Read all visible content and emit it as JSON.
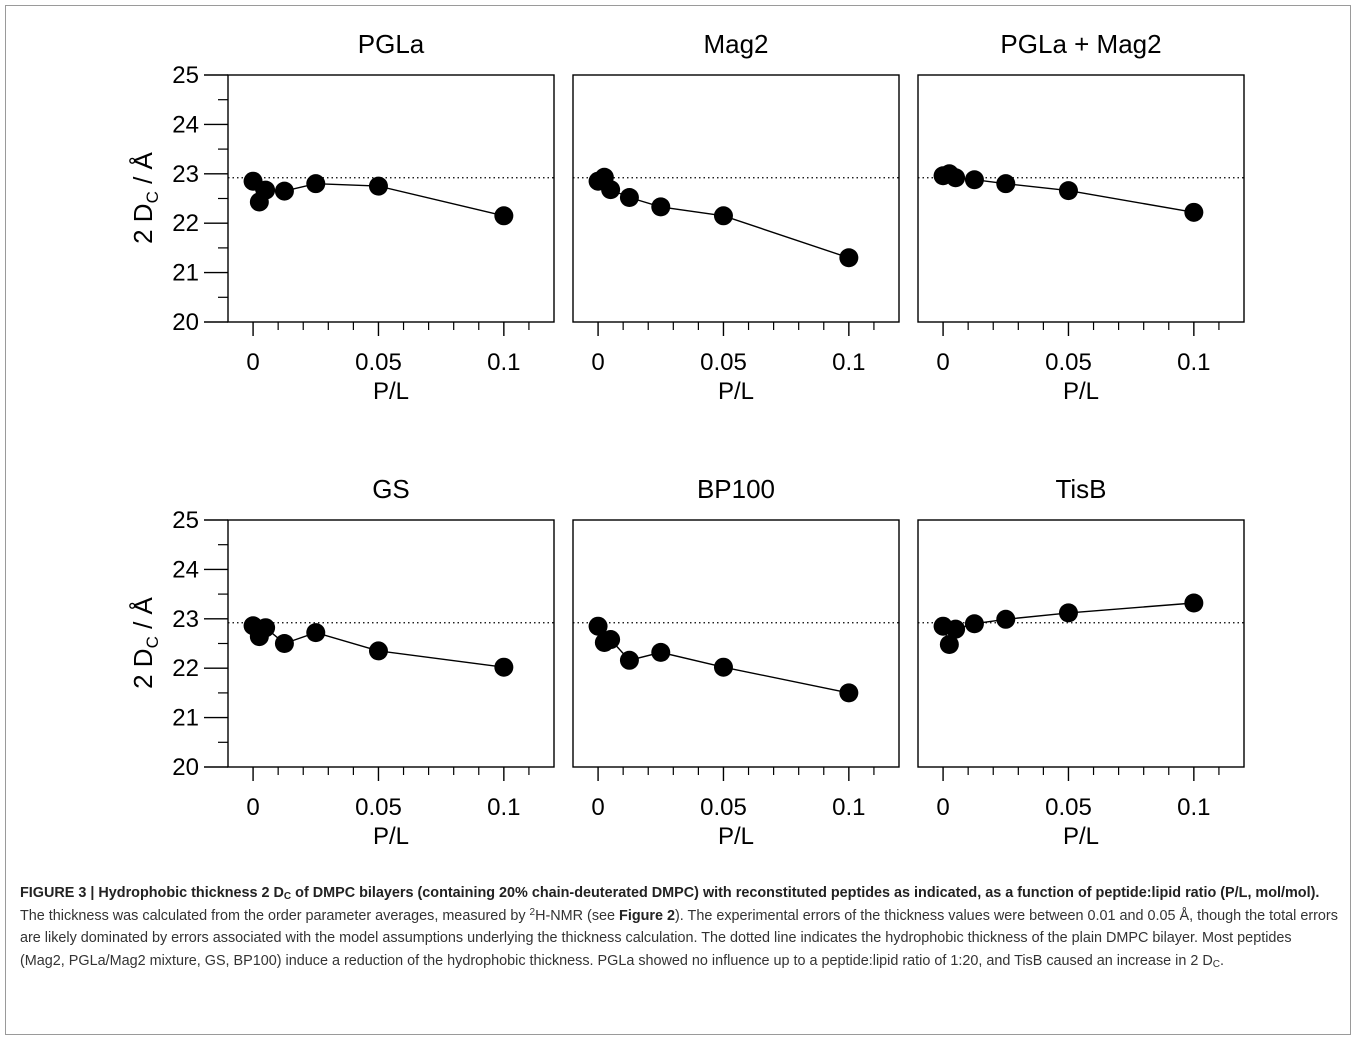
{
  "chart_data": [
    {
      "type": "line",
      "title": "PGLa",
      "xlabel": "P/L",
      "ylabel_main": "2 D",
      "ylabel_sub": "C",
      "ylabel_unit": " / Å",
      "xlim": [
        -0.01,
        0.12
      ],
      "ylim": [
        20,
        25
      ],
      "xticks": [
        "0",
        "0.05",
        "0.1"
      ],
      "yticks": [
        "20",
        "21",
        "22",
        "23",
        "24",
        "25"
      ],
      "reference_line": 22.92,
      "series": [
        {
          "x": [
            0,
            0.0025,
            0.005,
            0.0125,
            0.025,
            0.05,
            0.1
          ],
          "y": [
            22.85,
            22.43,
            22.67,
            22.65,
            22.8,
            22.75,
            22.15
          ]
        }
      ]
    },
    {
      "type": "line",
      "title": "Mag2",
      "xlabel": "P/L",
      "xlim": [
        -0.01,
        0.12
      ],
      "ylim": [
        20,
        25
      ],
      "xticks": [
        "0",
        "0.05",
        "0.1"
      ],
      "reference_line": 22.92,
      "series": [
        {
          "x": [
            0,
            0.0025,
            0.005,
            0.0125,
            0.025,
            0.05,
            0.1
          ],
          "y": [
            22.85,
            22.93,
            22.68,
            22.52,
            22.33,
            22.15,
            21.3
          ]
        }
      ]
    },
    {
      "type": "line",
      "title": "PGLa + Mag2",
      "xlabel": "P/L",
      "xlim": [
        -0.01,
        0.12
      ],
      "ylim": [
        20,
        25
      ],
      "xticks": [
        "0",
        "0.05",
        "0.1"
      ],
      "reference_line": 22.92,
      "series": [
        {
          "x": [
            0,
            0.0025,
            0.005,
            0.0125,
            0.025,
            0.05,
            0.1
          ],
          "y": [
            22.96,
            23.0,
            22.92,
            22.88,
            22.8,
            22.66,
            22.22
          ]
        }
      ]
    },
    {
      "type": "line",
      "title": "GS",
      "xlabel": "P/L",
      "ylabel_main": "2 D",
      "ylabel_sub": "C",
      "ylabel_unit": " / Å",
      "xlim": [
        -0.01,
        0.12
      ],
      "ylim": [
        20,
        25
      ],
      "xticks": [
        "0",
        "0.05",
        "0.1"
      ],
      "yticks": [
        "20",
        "21",
        "22",
        "23",
        "24",
        "25"
      ],
      "reference_line": 22.92,
      "series": [
        {
          "x": [
            0,
            0.0025,
            0.005,
            0.0125,
            0.025,
            0.05,
            0.1
          ],
          "y": [
            22.86,
            22.64,
            22.82,
            22.5,
            22.72,
            22.35,
            22.02
          ]
        }
      ]
    },
    {
      "type": "line",
      "title": "BP100",
      "xlabel": "P/L",
      "xlim": [
        -0.01,
        0.12
      ],
      "ylim": [
        20,
        25
      ],
      "xticks": [
        "0",
        "0.05",
        "0.1"
      ],
      "reference_line": 22.92,
      "series": [
        {
          "x": [
            0,
            0.0025,
            0.005,
            0.0125,
            0.025,
            0.05,
            0.1
          ],
          "y": [
            22.85,
            22.52,
            22.58,
            22.16,
            22.32,
            22.02,
            21.5
          ]
        }
      ]
    },
    {
      "type": "line",
      "title": "TisB",
      "xlabel": "P/L",
      "xlim": [
        -0.01,
        0.12
      ],
      "ylim": [
        20,
        25
      ],
      "xticks": [
        "0",
        "0.05",
        "0.1"
      ],
      "reference_line": 22.92,
      "series": [
        {
          "x": [
            0,
            0.0025,
            0.005,
            0.0125,
            0.025,
            0.05,
            0.1
          ],
          "y": [
            22.85,
            22.48,
            22.79,
            22.9,
            22.99,
            23.12,
            23.32
          ]
        }
      ]
    }
  ],
  "caption": {
    "bold_part1": "FIGURE 3 | Hydrophobic thickness 2 D",
    "bold_sub": "C",
    "bold_part2": " of DMPC bilayers (containing 20% chain-deuterated DMPC) with reconstituted peptides as indicated, as a function of peptide:lipid ratio (P/L, mol/mol).",
    "text1": " The thickness was calculated from the order parameter averages, measured by ",
    "sup": "2",
    "text2": "H-NMR (see ",
    "figure_ref": "Figure 2",
    "text3": "). The experimental errors of the thickness values were between 0.01 and 0.05 Å, though the total errors are likely dominated by errors associated with the model assumptions underlying the thickness calculation. The dotted line indicates the hydrophobic thickness of the plain DMPC bilayer. Most peptides (Mag2, PGLa/Mag2 mixture, GS, BP100) induce a reduction of the hydrophobic thickness. PGLa showed no influence up to a peptide:lipid ratio of 1:20, and TisB caused an increase in 2 D",
    "end_sub": "C",
    "end": "."
  }
}
